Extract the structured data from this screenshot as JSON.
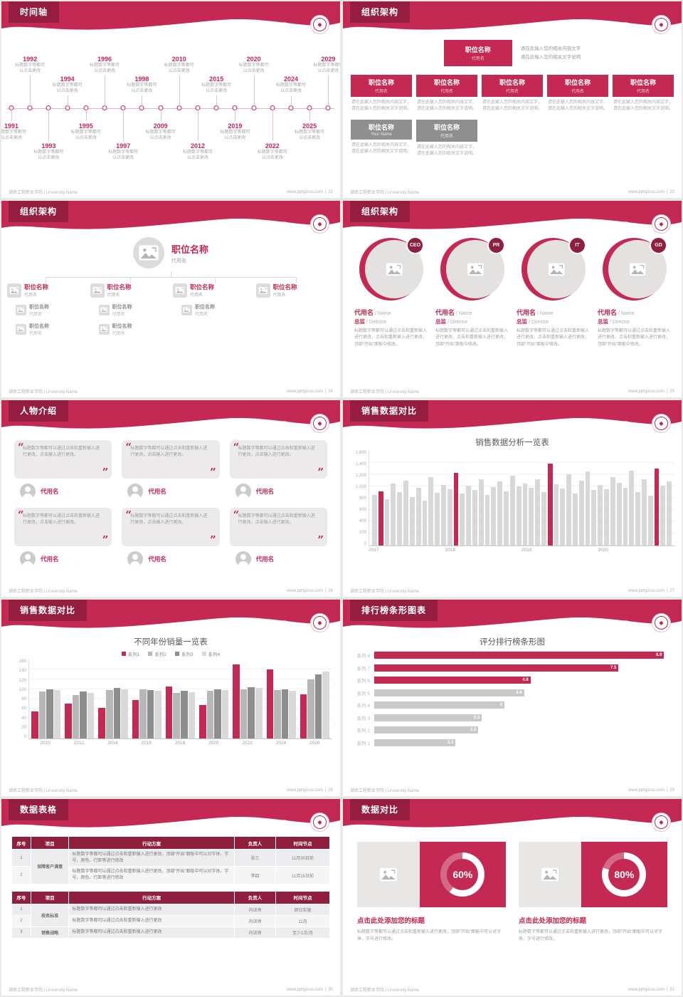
{
  "footer": {
    "left": "湖南工程职业学院 | University Name",
    "site": "www.pptgurus.com"
  },
  "slides": {
    "s22": {
      "title": "时间轴",
      "page": "22",
      "item_desc": "标题数字等都可以点击更改",
      "years": [
        "1991",
        "1992",
        "1993",
        "1994",
        "1995",
        "1996",
        "1997",
        "1998",
        "2009",
        "2010",
        "2012",
        "2015",
        "2019",
        "2020",
        "2022",
        "2024",
        "2025",
        "2029"
      ]
    },
    "s23": {
      "title": "组织架构",
      "page": "23",
      "top": {
        "title": "职位名称",
        "sub": "代用名",
        "line1": "请在此输入您的相关内容文字",
        "line2": "请在此输入您的相关文字说明"
      },
      "row1": [
        {
          "title": "职位名称",
          "sub": "代用名",
          "desc": "请在此输入您的相关内容文字，请在此输入您的相关文字说明。"
        },
        {
          "title": "职位名称",
          "sub": "代用名",
          "desc": "请在此输入您的相关内容文字，请在此输入您的相关文字说明。"
        },
        {
          "title": "职位名称",
          "sub": "代用名",
          "desc": "请在此输入您的相关内容文字，请在此输入您的相关文字说明。"
        },
        {
          "title": "职位名称",
          "sub": "代用名",
          "desc": "请在此输入您的相关内容文字，请在此输入您的相关文字说明。"
        },
        {
          "title": "职位名称",
          "sub": "代用名",
          "desc": "请在此输入您的相关内容文字，请在此输入您的相关文字说明。"
        }
      ],
      "row2": [
        {
          "title": "职位名称",
          "sub": "Your Name",
          "desc": "请在此输入您的相关内容文字，请在此输入您的相关文字说明。"
        },
        {
          "title": "职位名称",
          "sub": "代用名",
          "desc": "请在此输入您的相关内容文字，请在此输入您的相关文字说明。"
        }
      ]
    },
    "s24": {
      "title": "组织架构",
      "page": "24",
      "root": {
        "title": "职位名称",
        "sub": "代用名"
      },
      "nodes": [
        {
          "title": "职位名称",
          "sub": "代用名"
        },
        {
          "title": "职位名称",
          "sub": "代用名"
        },
        {
          "title": "职位名称",
          "sub": "代用名"
        },
        {
          "title": "职位名称",
          "sub": "代用名"
        }
      ],
      "children": [
        [
          {
            "title": "职位名称",
            "sub": "代用名"
          },
          {
            "title": "职位名称",
            "sub": "代用名"
          }
        ],
        [
          {
            "title": "职位名称",
            "sub": "代用名"
          },
          {
            "title": "职位名称",
            "sub": "代用名"
          }
        ],
        [
          {
            "title": "职位名称",
            "sub": "代用名"
          }
        ],
        []
      ]
    },
    "s25": {
      "title": "组织架构",
      "page": "25",
      "people": [
        {
          "badge": "CEO",
          "name": "代用名",
          "name_en": " / Name",
          "role": "总监",
          "role_en": " / Director",
          "desc": "标题数字等都可以通过点击和重新输入进行更改，点击和重新输入进行更改，顶部“开始”面板中修改。"
        },
        {
          "badge": "PR",
          "name": "代用名",
          "name_en": " / Name",
          "role": "总监",
          "role_en": " / Director",
          "desc": "标题数字等都可以通过点击和重新输入进行更改，点击和重新输入进行更改，顶部“开始”面板中修改。"
        },
        {
          "badge": "IT",
          "name": "代用名",
          "name_en": " / Name",
          "role": "总监",
          "role_en": " / Director",
          "desc": "标题数字等都可以通过点击和重新输入进行更改，点击和重新输入进行更改，顶部“开始”面板中修改。"
        },
        {
          "badge": "GD",
          "name": "代用名",
          "name_en": " / Name",
          "role": "总监",
          "role_en": " / Director",
          "desc": "标题数字等都可以通过点击和重新输入进行更改，点击和重新输入进行更改，顶部“开始”面板中修改。"
        }
      ]
    },
    "s26": {
      "title": "人物介绍",
      "page": "26",
      "people": [
        {
          "name": "代用名",
          "quote": "标题数字等都可以通过点击和重新输入进行更改，点击输入进行更改。"
        },
        {
          "name": "代用名",
          "quote": "标题数字等都可以通过点击和重新输入进行更改，点击输入进行更改。"
        },
        {
          "name": "代用名",
          "quote": "标题数字等都可以通过点击和重新输入进行更改，点击输入进行更改。"
        },
        {
          "name": "代用名",
          "quote": "标题数字等都可以通过点击和重新输入进行更改，点击输入进行更改。"
        },
        {
          "name": "代用名",
          "quote": "标题数字等都可以通过点击和重新输入进行更改，点击输入进行更改。"
        },
        {
          "name": "代用名",
          "quote": "标题数字等都可以通过点击和重新输入进行更改，点击输入进行更改。"
        }
      ]
    },
    "s27": {
      "title": "销售数据对比",
      "page": "27"
    },
    "s28": {
      "title": "销售数据对比",
      "page": "28"
    },
    "s29": {
      "title": "排行榜条形图表",
      "page": "29"
    },
    "s30": {
      "title": "数据表格",
      "page": "30",
      "headers": [
        "序号",
        "项目",
        "行动方案",
        "负责人",
        "时间节点"
      ],
      "t1": {
        "project": "保障客户满意",
        "rows": [
          {
            "no": "1",
            "plan": "标题数字等都可以通过点击和重新输入进行更改，顶部“开始”面板中可以对字体、字号、颜色、行距等进行修改",
            "owner": "张三",
            "time": "11月30日前"
          },
          {
            "no": "2",
            "plan": "标题数字等都可以通过点击和重新输入进行更改，顶部“开始”面板中可以对字体、字号、颜色、行距等进行修改",
            "owner": "李四",
            "time": "11月15日前"
          }
        ]
      },
      "t2": {
        "project1": "校务标准",
        "project2": "销售战略",
        "rows": [
          {
            "no": "1",
            "plan": "标题数字等都可以通过点击和重新输入进行更改",
            "owner": "内训师",
            "time": "即日实施"
          },
          {
            "no": "2",
            "plan": "标题数字等都可以通过点击和重新输入进行更改",
            "owner": "内训师",
            "time": "11月"
          },
          {
            "no": "3",
            "plan": "标题数字等都可以通过点击和重新输入进行更改",
            "owner": "内训师",
            "time": "至少1次/月"
          }
        ]
      }
    },
    "s31": {
      "title": "数据对比",
      "page": "31",
      "panels": [
        {
          "title": "点击此处添加您的标题",
          "desc": "标题数字等都可以通过点击和重新输入进行更改，顶部“开始”面板中可以对字体、字号进行修改。"
        },
        {
          "title": "点击此处添加您的标题",
          "desc": "标题数字等都可以通过点击和重新输入进行更改，顶部“开始”面板中可以对字体、字号进行修改。"
        }
      ]
    }
  },
  "chart_data": [
    {
      "id": "sales-analysis",
      "type": "bar",
      "title": "销售数据分析一览表",
      "x_groups": [
        "2017",
        "2018",
        "2019",
        "2020"
      ],
      "values": [
        850,
        920,
        780,
        1050,
        900,
        1100,
        820,
        980,
        760,
        1150,
        890,
        1020,
        950,
        1230,
        880,
        1010,
        940,
        1120,
        860,
        990,
        1080,
        920,
        1180,
        1000,
        1050,
        980,
        1120,
        900,
        1380,
        1040,
        960,
        1200,
        880,
        1100,
        1250,
        940,
        1020,
        950,
        1160,
        1060,
        980,
        1260,
        900,
        1120,
        840,
        1300,
        1010,
        1080
      ],
      "red_indices": [
        1,
        13,
        28,
        45
      ],
      "ylim": [
        0,
        1600
      ],
      "yticks": [
        "0",
        "200",
        "400",
        "600",
        "800",
        "1,000",
        "1,200",
        "1,400",
        "1,600"
      ],
      "bar_color": "#d8d8d8",
      "accent_color": "#c32952",
      "grid": true,
      "legend_position": "none"
    },
    {
      "id": "yearly-sales",
      "type": "bar",
      "title": "不同年份销量一览表",
      "categories": [
        "2010",
        "2012",
        "2014",
        "2016",
        "2018",
        "2020",
        "2022",
        "2024",
        "2026"
      ],
      "series": [
        {
          "name": "系列1",
          "color": "#c32952",
          "values": [
            55,
            70,
            62,
            78,
            105,
            68,
            150,
            140,
            90
          ]
        },
        {
          "name": "系列2",
          "color": "#b7b7b7",
          "values": [
            95,
            88,
            98,
            100,
            92,
            96,
            100,
            98,
            120
          ]
        },
        {
          "name": "系列3",
          "color": "#8e8e8e",
          "values": [
            100,
            95,
            102,
            98,
            96,
            100,
            104,
            100,
            130
          ]
        },
        {
          "name": "系列4",
          "color": "#d9d9d9",
          "values": [
            98,
            92,
            100,
            96,
            94,
            98,
            102,
            96,
            135
          ]
        }
      ],
      "ylim": [
        0,
        160
      ],
      "yticks": [
        "0",
        "20",
        "40",
        "60",
        "80",
        "100",
        "120",
        "140",
        "160"
      ],
      "grid": true,
      "legend_position": "top"
    },
    {
      "id": "score-ranking",
      "type": "bar-horizontal",
      "title": "评分排行榜条形图",
      "categories": [
        "系列 8",
        "系列 7",
        "系列 6",
        "系列 5",
        "系列 4",
        "系列 3",
        "系列 2",
        "系列 1"
      ],
      "values": [
        8.9,
        7.5,
        4.8,
        4.6,
        4,
        3.3,
        3.2,
        2.5
      ],
      "red_count": 3,
      "xlim": [
        0,
        9
      ],
      "bar_color": "#c9c9c9",
      "accent_color": "#c32952",
      "grid": false,
      "legend_position": "none"
    },
    {
      "id": "percent-left",
      "type": "donut",
      "value": 60,
      "label": "60%"
    },
    {
      "id": "percent-right",
      "type": "donut",
      "value": 80,
      "label": "80%"
    }
  ]
}
